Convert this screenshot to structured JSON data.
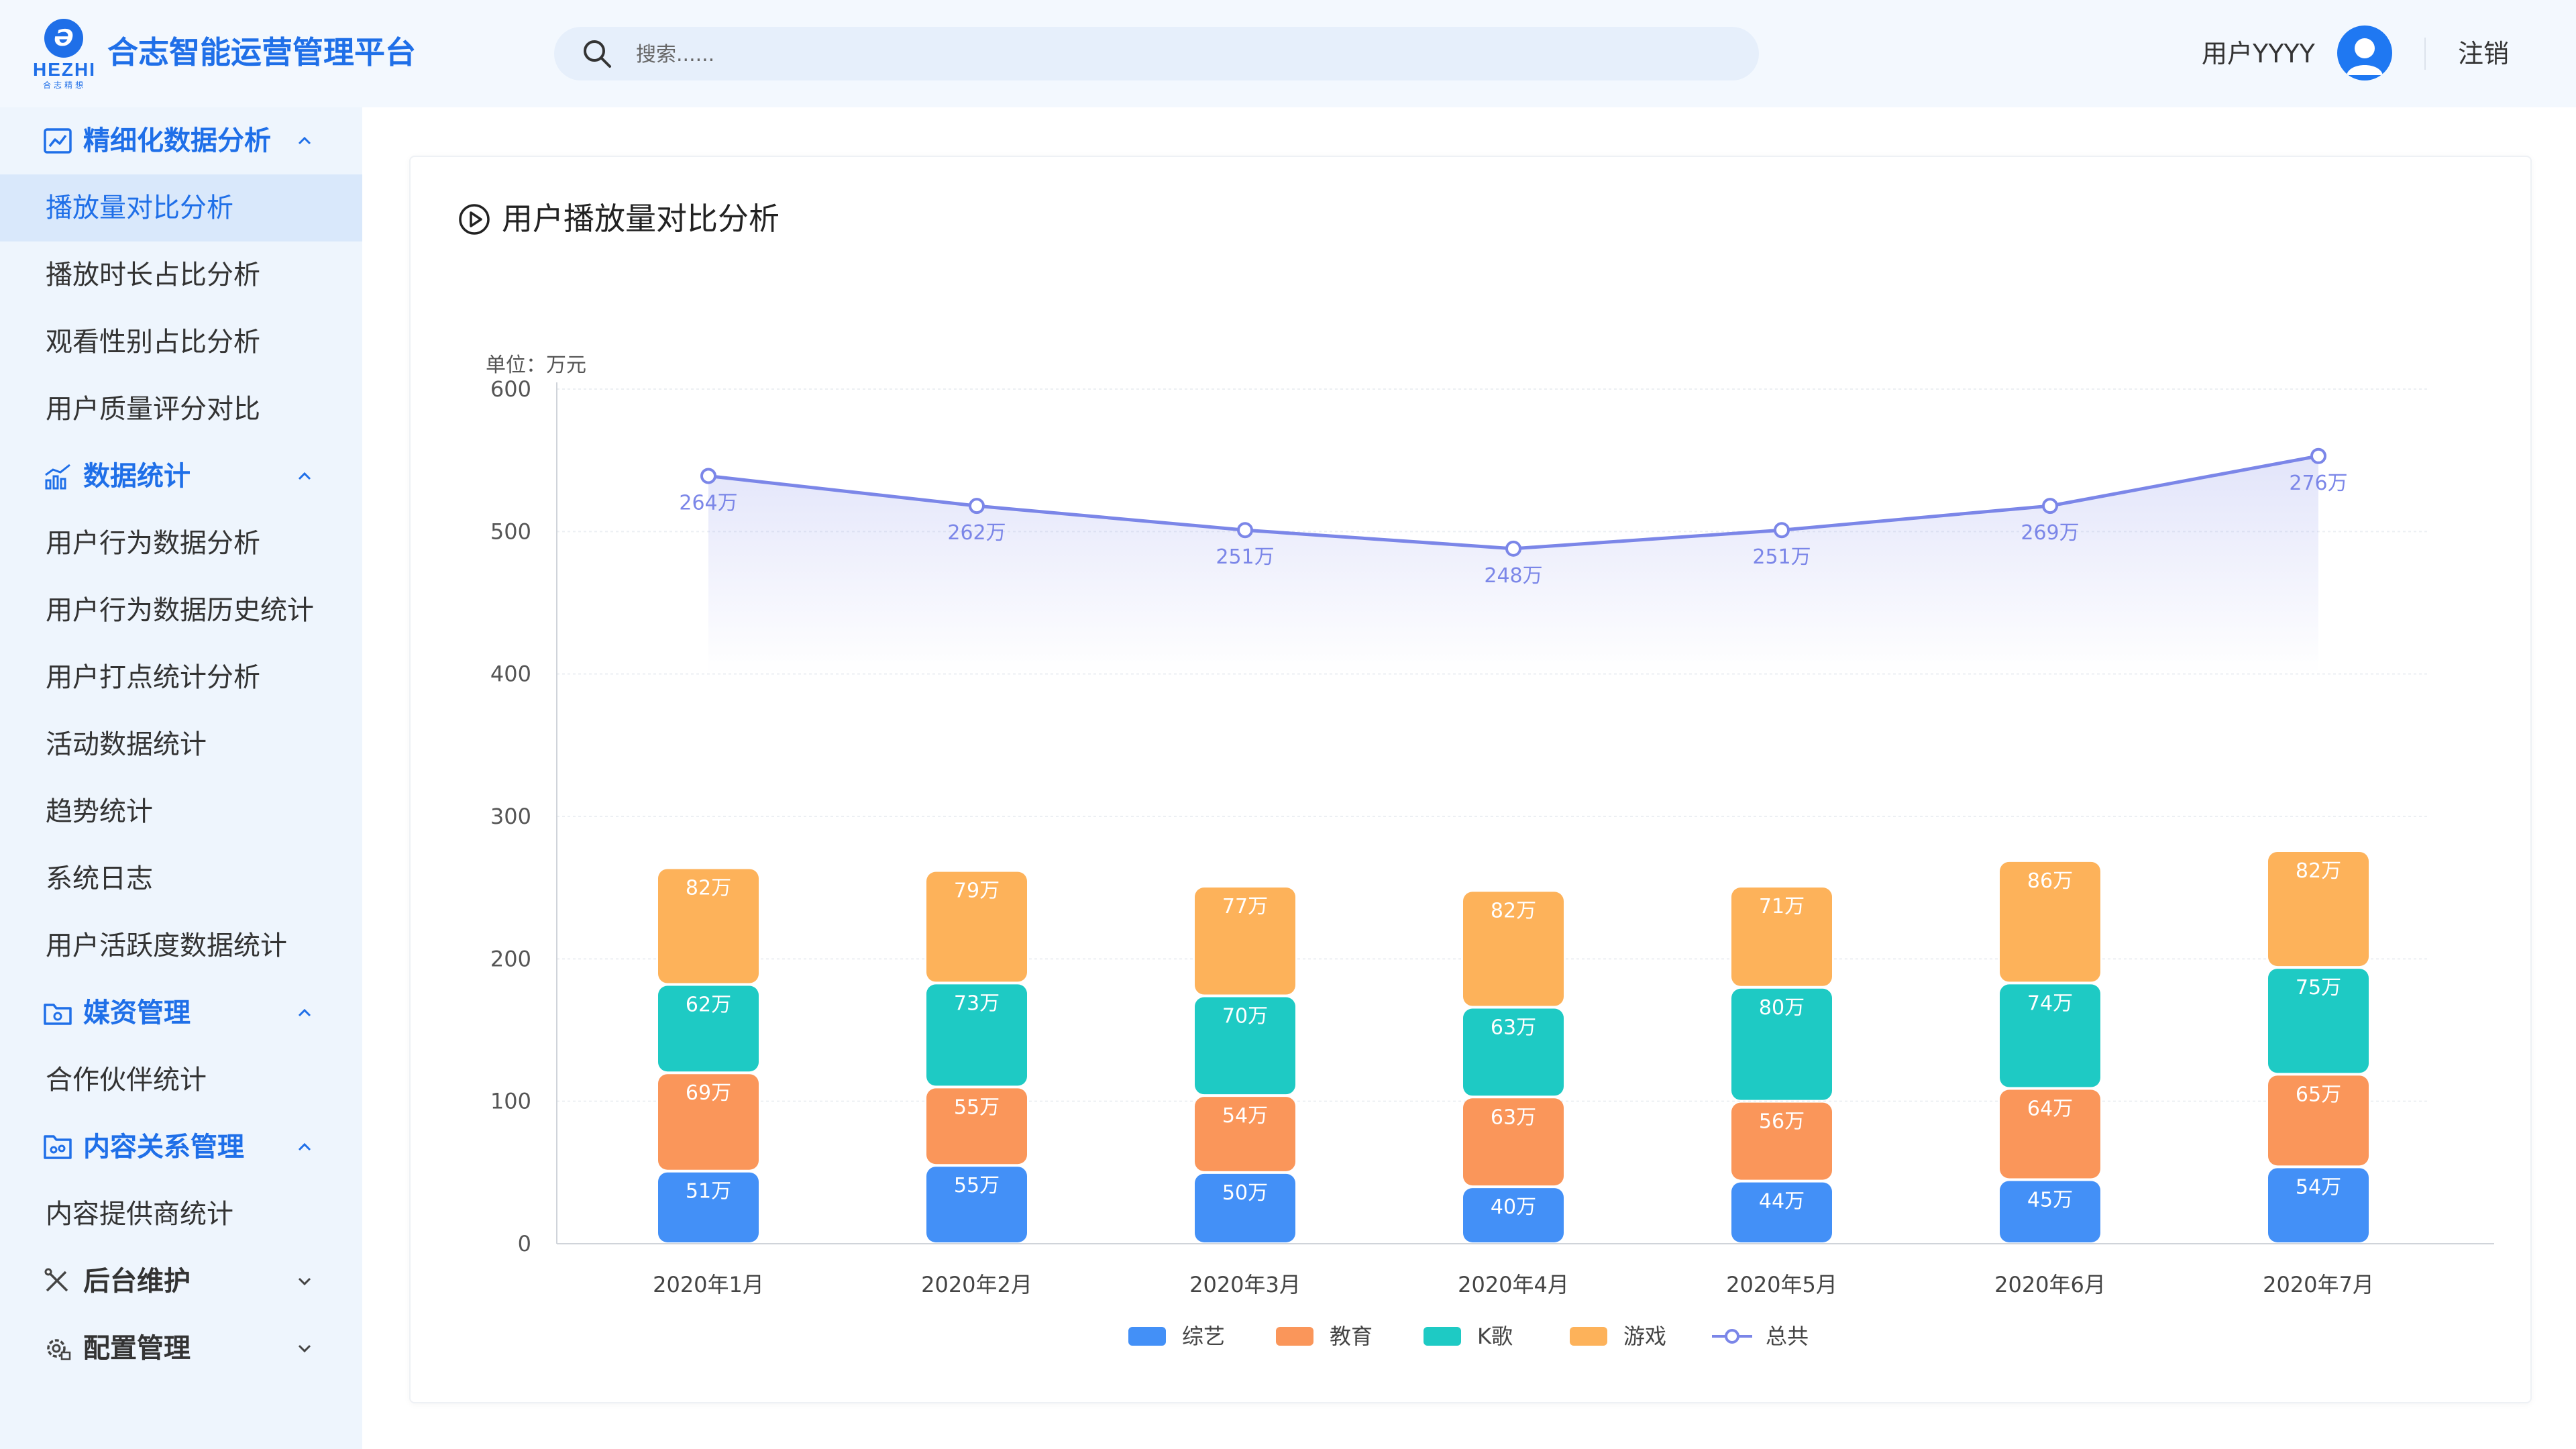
{
  "header": {
    "logo_letter": "Ə",
    "logo_text": "HEZHI",
    "logo_sub": "合志精想",
    "app_title": "合志智能运营管理平台",
    "search_placeholder": "搜索......",
    "user_name": "用户YYYY",
    "logout_label": "注销"
  },
  "sidebar": {
    "groups": [
      {
        "label": "精细化数据分析",
        "icon": "trend-chart-icon",
        "expanded": true,
        "items": [
          "播放量对比分析",
          "播放时长占比分析",
          "观看性别占比分析",
          "用户质量评分对比"
        ]
      },
      {
        "label": "数据统计",
        "icon": "bar-line-chart-icon",
        "expanded": true,
        "items": [
          "用户行为数据分析",
          "用户行为数据历史统计",
          "用户打点统计分析",
          "活动数据统计",
          "趋势统计",
          "系统日志",
          "用户活跃度数据统计"
        ]
      },
      {
        "label": "媒资管理",
        "icon": "folder-media-icon",
        "expanded": true,
        "items": [
          "合作伙伴统计"
        ]
      },
      {
        "label": "内容关系管理",
        "icon": "folder-link-icon",
        "expanded": true,
        "items": [
          "内容提供商统计"
        ]
      },
      {
        "label": "后台维护",
        "icon": "tools-icon",
        "expanded": false,
        "items": []
      },
      {
        "label": "配置管理",
        "icon": "gear-config-icon",
        "expanded": false,
        "items": []
      }
    ],
    "active_item": "播放量对比分析"
  },
  "card": {
    "title": "用户播放量对比分析",
    "icon": "play-circle-icon"
  },
  "colors": {
    "accent": "#1f6fe8",
    "variety": "#4390f7",
    "education": "#fa965a",
    "ktv": "#1ecac4",
    "games": "#fdb25a",
    "total": "#7b86e8"
  },
  "chart_data": {
    "type": "bar",
    "stacked": true,
    "unit_label": "单位：万元",
    "categories": [
      "2020年1月",
      "2020年2月",
      "2020年3月",
      "2020年4月",
      "2020年5月",
      "2020年6月",
      "2020年7月"
    ],
    "value_suffix": "万",
    "ylim": [
      0,
      600
    ],
    "yticks": [
      0,
      100,
      200,
      300,
      400,
      500,
      600
    ],
    "grid": true,
    "legend_position": "bottom-center",
    "series": [
      {
        "name": "综艺",
        "type": "bar",
        "values": [
          51,
          55,
          50,
          40,
          44,
          45,
          54
        ]
      },
      {
        "name": "教育",
        "type": "bar",
        "values": [
          69,
          55,
          54,
          63,
          56,
          64,
          65
        ]
      },
      {
        "name": "K歌",
        "type": "bar",
        "values": [
          62,
          73,
          70,
          63,
          80,
          74,
          75
        ]
      },
      {
        "name": "游戏",
        "type": "bar",
        "values": [
          82,
          79,
          77,
          82,
          71,
          86,
          82
        ]
      },
      {
        "name": "总共",
        "type": "line",
        "values": [
          264,
          262,
          251,
          248,
          251,
          269,
          276
        ]
      }
    ],
    "line_plot_values": [
      539,
      518,
      501,
      488,
      501,
      518,
      553
    ]
  }
}
